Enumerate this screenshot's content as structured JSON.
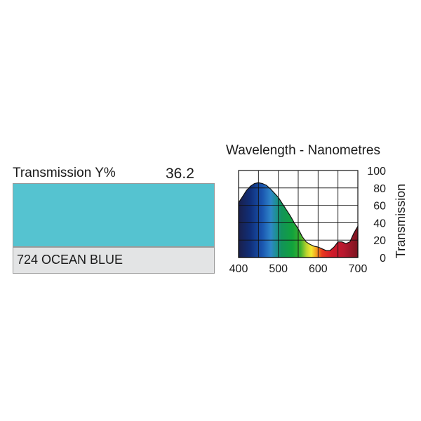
{
  "filter": {
    "transmission_label": "Transmission Y%",
    "transmission_value": "36.2",
    "name": "724 OCEAN BLUE",
    "swatch_color": "#55c3d0",
    "panel_color": "#e3e4e5"
  },
  "chart_data": {
    "type": "area",
    "title": "Wavelength - Nanometres",
    "xlabel": "",
    "ylabel": "Transmission",
    "xlim": [
      400,
      700
    ],
    "ylim": [
      0,
      100
    ],
    "x_ticks": [
      "400",
      "500",
      "600",
      "700"
    ],
    "y_ticks": [
      "0",
      "20",
      "40",
      "60",
      "80",
      "100"
    ],
    "grid": true,
    "fill": "visible-spectrum gradient",
    "series": [
      {
        "x": [
          400,
          410,
          420,
          430,
          440,
          450,
          460,
          470,
          480,
          490,
          500,
          510,
          520,
          530,
          540,
          550,
          560,
          570,
          580,
          590,
          600,
          610,
          620,
          630,
          640,
          650,
          660,
          670,
          680,
          690,
          700
        ],
        "y": [
          63,
          70,
          77,
          82,
          85,
          86,
          85,
          83,
          79,
          74,
          69,
          62,
          55,
          48,
          40,
          33,
          24,
          18,
          15,
          13,
          12,
          10,
          8,
          8,
          12,
          18,
          18,
          16,
          18,
          28,
          36
        ]
      }
    ]
  }
}
